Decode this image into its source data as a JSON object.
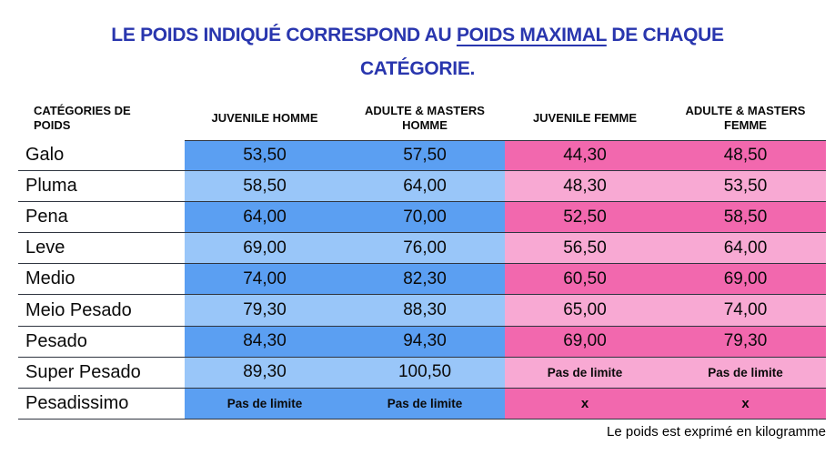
{
  "title": {
    "part1": "LE POIDS INDIQUÉ CORRESPOND AU ",
    "underlined": "POIDS MAXIMAL",
    "part2": " DE CHAQUE",
    "line2": "CATÉGORIE."
  },
  "table": {
    "col_headers": [
      "CATÉGORIES DE POIDS",
      "JUVENILE HOMME",
      "ADULTE & MASTERS HOMME",
      "JUVENILE FEMME",
      "ADULTE & MASTERS FEMME"
    ],
    "rows": [
      {
        "category": "Galo",
        "men_juvenile": "53,50",
        "men_adult": "57,50",
        "women_juvenile": "44,30",
        "women_adult": "48,50"
      },
      {
        "category": "Pluma",
        "men_juvenile": "58,50",
        "men_adult": "64,00",
        "women_juvenile": "48,30",
        "women_adult": "53,50"
      },
      {
        "category": "Pena",
        "men_juvenile": "64,00",
        "men_adult": "70,00",
        "women_juvenile": "52,50",
        "women_adult": "58,50"
      },
      {
        "category": "Leve",
        "men_juvenile": "69,00",
        "men_adult": "76,00",
        "women_juvenile": "56,50",
        "women_adult": "64,00"
      },
      {
        "category": "Medio",
        "men_juvenile": "74,00",
        "men_adult": "82,30",
        "women_juvenile": "60,50",
        "women_adult": "69,00"
      },
      {
        "category": "Meio Pesado",
        "men_juvenile": "79,30",
        "men_adult": "88,30",
        "women_juvenile": "65,00",
        "women_adult": "74,00"
      },
      {
        "category": "Pesado",
        "men_juvenile": "84,30",
        "men_adult": "94,30",
        "women_juvenile": "69,00",
        "women_adult": "79,30"
      },
      {
        "category": "Super Pesado",
        "men_juvenile": "89,30",
        "men_adult": "100,50",
        "women_juvenile": "Pas de limite",
        "women_adult": "Pas de limite"
      },
      {
        "category": "Pesadissimo",
        "men_juvenile": "Pas de limite",
        "men_adult": "Pas de limite",
        "women_juvenile": "x",
        "women_adult": "x"
      }
    ]
  },
  "footer": {
    "note": "Le poids est exprimé en kilogramme"
  },
  "colors": {
    "title_blue": "#2936ae",
    "men_dark": "#5b9ff2",
    "men_light": "#99c6f9",
    "women_dark": "#f268ae",
    "women_light": "#f8a9d3",
    "line": "#2f3540"
  }
}
